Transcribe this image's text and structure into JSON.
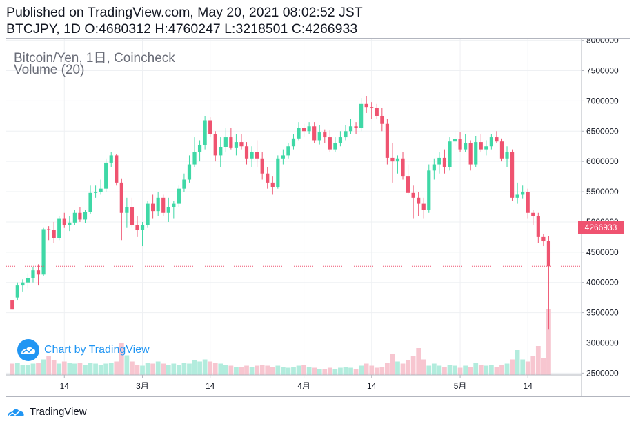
{
  "header": {
    "line1": "Published on TradingView.com, May 20, 2021 08:02:52 JST",
    "line2": "BTCJPY, 1D O:4680312 H:4760247 L:3218501 C:4266933"
  },
  "legend": {
    "title": "Bitcoin/Yen, 1日, Coincheck",
    "volume": "Volume (20)"
  },
  "watermark": "Chart by TradingView",
  "footer": "TradingView",
  "colors": {
    "up": "#26a69a",
    "up_candle": "#3fd8a6",
    "down": "#ef5370",
    "up_volume": "#b2ecdd",
    "down_volume": "#f7c6d0",
    "grid": "#eef0f3",
    "last_price_line": "#ef5370",
    "axis_text": "#131722"
  },
  "chart_data": {
    "type": "candlestick",
    "symbol": "BTCJPY",
    "interval": "1D",
    "exchange": "Coincheck",
    "last_price": 4266933,
    "last_price_label": "4266933",
    "y_axis_ticks": [
      "8000000",
      "7500000",
      "7000000",
      "6500000",
      "6000000",
      "5500000",
      "5000000",
      "4500000",
      "4000000",
      "3500000",
      "3000000",
      "2500000"
    ],
    "ylim": [
      2470000,
      8030000
    ],
    "x_axis_labels": [
      {
        "label": "14",
        "index": 10
      },
      {
        "label": "3月",
        "index": 25
      },
      {
        "label": "14",
        "index": 38
      },
      {
        "label": "4月",
        "index": 56
      },
      {
        "label": "14",
        "index": 69
      },
      {
        "label": "5月",
        "index": 86
      },
      {
        "label": "14",
        "index": 99
      }
    ],
    "candles": [
      [
        3700000,
        3700000,
        3550000,
        3550000
      ],
      [
        3750000,
        4000000,
        3700000,
        3950000
      ],
      [
        3950000,
        4050000,
        3850000,
        4000000
      ],
      [
        4000000,
        4150000,
        3900000,
        4070000
      ],
      [
        4070000,
        4250000,
        4000000,
        4200000
      ],
      [
        4200000,
        4300000,
        3950000,
        4130000
      ],
      [
        4130000,
        4900000,
        4100000,
        4880000
      ],
      [
        4880000,
        4930000,
        4700000,
        4870000
      ],
      [
        4870000,
        5000000,
        4650000,
        4730000
      ],
      [
        4730000,
        5100000,
        4700000,
        5050000
      ],
      [
        5050000,
        5150000,
        4900000,
        4950000
      ],
      [
        4950000,
        5100000,
        4850000,
        4990000
      ],
      [
        4990000,
        5200000,
        4950000,
        5150000
      ],
      [
        5150000,
        5250000,
        5000000,
        5040000
      ],
      [
        5040000,
        5200000,
        4980000,
        5170000
      ],
      [
        5170000,
        5600000,
        5130000,
        5480000
      ],
      [
        5480000,
        5600000,
        5400000,
        5500000
      ],
      [
        5500000,
        5700000,
        5450000,
        5550000
      ],
      [
        5550000,
        6050000,
        5500000,
        5980000
      ],
      [
        5980000,
        6150000,
        5900000,
        6100000
      ],
      [
        6100000,
        6120000,
        5600000,
        5650000
      ],
      [
        5650000,
        5720000,
        4700000,
        5150000
      ],
      [
        5150000,
        5400000,
        4900000,
        5250000
      ],
      [
        5250000,
        5400000,
        4900000,
        4950000
      ],
      [
        4950000,
        5100000,
        4750000,
        4870000
      ],
      [
        4870000,
        5000000,
        4600000,
        4950000
      ],
      [
        4950000,
        5350000,
        4900000,
        5300000
      ],
      [
        5300000,
        5450000,
        5050000,
        5180000
      ],
      [
        5180000,
        5500000,
        5100000,
        5400000
      ],
      [
        5400000,
        5450000,
        5100000,
        5150000
      ],
      [
        5150000,
        5400000,
        5000000,
        5250000
      ],
      [
        5250000,
        5350000,
        5050000,
        5300000
      ],
      [
        5300000,
        5600000,
        5250000,
        5550000
      ],
      [
        5550000,
        5800000,
        5500000,
        5700000
      ],
      [
        5700000,
        6100000,
        5650000,
        5950000
      ],
      [
        5950000,
        6400000,
        5900000,
        6150000
      ],
      [
        6150000,
        6350000,
        6000000,
        6270000
      ],
      [
        6270000,
        6750000,
        6200000,
        6680000
      ],
      [
        6680000,
        6730000,
        6400000,
        6450000
      ],
      [
        6450000,
        6500000,
        6000000,
        6100000
      ],
      [
        6100000,
        6400000,
        5900000,
        6230000
      ],
      [
        6230000,
        6550000,
        6150000,
        6400000
      ],
      [
        6400000,
        6550000,
        6200000,
        6220000
      ],
      [
        6220000,
        6450000,
        6100000,
        6320000
      ],
      [
        6320000,
        6450000,
        6200000,
        6250000
      ],
      [
        6250000,
        6320000,
        5950000,
        6050000
      ],
      [
        6050000,
        6250000,
        5900000,
        6150000
      ],
      [
        6150000,
        6350000,
        5900000,
        6050000
      ],
      [
        6050000,
        6150000,
        5700000,
        5800000
      ],
      [
        5800000,
        5900000,
        5550000,
        5650000
      ],
      [
        5650000,
        5750000,
        5450000,
        5580000
      ],
      [
        5580000,
        6100000,
        5550000,
        6050000
      ],
      [
        6050000,
        6200000,
        5950000,
        6100000
      ],
      [
        6100000,
        6300000,
        6050000,
        6250000
      ],
      [
        6250000,
        6450000,
        6200000,
        6380000
      ],
      [
        6380000,
        6650000,
        6350000,
        6550000
      ],
      [
        6550000,
        6620000,
        6400000,
        6500000
      ],
      [
        6500000,
        6650000,
        6450000,
        6580000
      ],
      [
        6580000,
        6650000,
        6300000,
        6350000
      ],
      [
        6350000,
        6600000,
        6280000,
        6480000
      ],
      [
        6480000,
        6530000,
        6300000,
        6400000
      ],
      [
        6400000,
        6520000,
        6150000,
        6200000
      ],
      [
        6200000,
        6400000,
        6150000,
        6300000
      ],
      [
        6300000,
        6500000,
        6250000,
        6400000
      ],
      [
        6400000,
        6600000,
        6350000,
        6500000
      ],
      [
        6500000,
        6700000,
        6450000,
        6580000
      ],
      [
        6580000,
        6650000,
        6450000,
        6550000
      ],
      [
        6550000,
        7050000,
        6500000,
        6950000
      ],
      [
        6950000,
        7080000,
        6800000,
        6900000
      ],
      [
        6900000,
        6980000,
        6700000,
        6880000
      ],
      [
        6880000,
        6950000,
        6700000,
        6750000
      ],
      [
        6750000,
        6880000,
        6500000,
        6620000
      ],
      [
        6620000,
        6700000,
        5950000,
        6060000
      ],
      [
        6060000,
        6300000,
        5650000,
        6000000
      ],
      [
        6000000,
        6100000,
        5800000,
        6050000
      ],
      [
        6050000,
        6150000,
        5700000,
        5750000
      ],
      [
        5750000,
        5950000,
        5450000,
        5480000
      ],
      [
        5480000,
        5600000,
        5050000,
        5400000
      ],
      [
        5400000,
        5500000,
        5100000,
        5300000
      ],
      [
        5300000,
        5400000,
        5050000,
        5200000
      ],
      [
        5200000,
        5950000,
        5150000,
        5850000
      ],
      [
        5850000,
        6050000,
        5700000,
        5950000
      ],
      [
        5950000,
        6150000,
        5800000,
        6060000
      ],
      [
        6060000,
        6200000,
        5800000,
        5900000
      ],
      [
        5900000,
        6400000,
        5850000,
        6330000
      ],
      [
        6330000,
        6500000,
        6250000,
        6370000
      ],
      [
        6370000,
        6480000,
        6150000,
        6200000
      ],
      [
        6200000,
        6450000,
        6150000,
        6300000
      ],
      [
        6300000,
        6350000,
        5850000,
        5950000
      ],
      [
        5950000,
        6420000,
        5900000,
        6320000
      ],
      [
        6320000,
        6450000,
        6150000,
        6200000
      ],
      [
        6200000,
        6350000,
        6100000,
        6250000
      ],
      [
        6250000,
        6450000,
        6200000,
        6400000
      ],
      [
        6400000,
        6500000,
        6300000,
        6330000
      ],
      [
        6330000,
        6380000,
        6000000,
        6050000
      ],
      [
        6050000,
        6250000,
        5900000,
        6150000
      ],
      [
        6150000,
        6200000,
        5350000,
        5400000
      ],
      [
        5400000,
        5650000,
        5300000,
        5450000
      ],
      [
        5450000,
        5600000,
        5380000,
        5500000
      ],
      [
        5500000,
        5550000,
        5050000,
        5150000
      ],
      [
        5150000,
        5200000,
        4950000,
        5100000
      ],
      [
        5100000,
        5150000,
        4650000,
        4750000
      ],
      [
        4750000,
        4800000,
        4600000,
        4680000
      ],
      [
        4680312,
        4760247,
        3218501,
        4266933
      ]
    ],
    "volumes": [
      0.55,
      0.6,
      0.5,
      0.5,
      0.55,
      0.6,
      0.75,
      0.9,
      0.7,
      0.55,
      0.65,
      0.6,
      0.55,
      0.6,
      0.5,
      0.6,
      0.55,
      0.5,
      0.55,
      0.6,
      0.65,
      1.55,
      0.95,
      0.65,
      0.5,
      0.45,
      0.6,
      0.55,
      0.65,
      0.55,
      0.5,
      0.55,
      0.5,
      0.6,
      0.55,
      0.7,
      0.65,
      0.75,
      0.65,
      0.6,
      0.55,
      0.5,
      0.45,
      0.4,
      0.4,
      0.45,
      0.4,
      0.45,
      0.5,
      0.45,
      0.4,
      0.45,
      0.4,
      0.35,
      0.4,
      0.45,
      0.5,
      0.4,
      0.35,
      0.3,
      0.3,
      0.35,
      0.3,
      0.35,
      0.4,
      0.35,
      0.3,
      0.45,
      0.55,
      0.45,
      0.35,
      0.4,
      0.6,
      1.0,
      0.65,
      0.55,
      0.7,
      0.9,
      1.3,
      0.75,
      0.45,
      0.55,
      0.45,
      0.4,
      0.5,
      0.45,
      0.35,
      0.45,
      0.4,
      0.6,
      0.5,
      0.45,
      0.5,
      0.4,
      0.5,
      0.55,
      0.75,
      1.2,
      0.75,
      0.65,
      0.9,
      1.4,
      0.8,
      3.2
    ]
  }
}
